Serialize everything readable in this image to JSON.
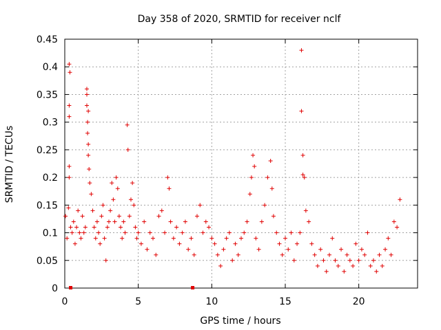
{
  "chart_data": {
    "type": "scatter",
    "title": "Day 358 of 2020, SRMTID for receiver nclf",
    "xlabel": "GPS time / hours",
    "ylabel": "SRMTID / TECUs",
    "xlim": [
      0,
      24
    ],
    "ylim": [
      0,
      0.45
    ],
    "x_ticks": [
      "0",
      "5",
      "10",
      "15",
      "20"
    ],
    "y_ticks": [
      "0",
      "0.05",
      "0.1",
      "0.15",
      "0.2",
      "0.25",
      "0.3",
      "0.35",
      "0.4",
      "0.45"
    ],
    "grid": true,
    "marker": "plus",
    "color": "#e00000",
    "marker_bottom": [
      0.4,
      8.7
    ],
    "series": [
      {
        "values": [
          [
            0.05,
            0.13
          ],
          [
            0.15,
            0.09
          ],
          [
            0.25,
            0.145
          ],
          [
            0.3,
            0.2
          ],
          [
            0.3,
            0.22
          ],
          [
            0.3,
            0.31
          ],
          [
            0.3,
            0.33
          ],
          [
            0.3,
            0.405
          ],
          [
            0.35,
            0.39
          ],
          [
            0.4,
            0.11
          ],
          [
            0.5,
            0.1
          ],
          [
            0.6,
            0.12
          ],
          [
            0.7,
            0.08
          ],
          [
            0.8,
            0.11
          ],
          [
            0.9,
            0.14
          ],
          [
            1.0,
            0.1
          ],
          [
            1.1,
            0.09
          ],
          [
            1.2,
            0.13
          ],
          [
            1.3,
            0.1
          ],
          [
            1.4,
            0.11
          ],
          [
            1.5,
            0.36
          ],
          [
            1.5,
            0.35
          ],
          [
            1.5,
            0.33
          ],
          [
            1.6,
            0.32
          ],
          [
            1.55,
            0.3
          ],
          [
            1.55,
            0.28
          ],
          [
            1.6,
            0.26
          ],
          [
            1.6,
            0.24
          ],
          [
            1.65,
            0.215
          ],
          [
            1.7,
            0.19
          ],
          [
            1.8,
            0.17
          ],
          [
            1.9,
            0.14
          ],
          [
            2.0,
            0.11
          ],
          [
            2.1,
            0.09
          ],
          [
            2.2,
            0.12
          ],
          [
            2.3,
            0.1
          ],
          [
            2.4,
            0.08
          ],
          [
            2.5,
            0.13
          ],
          [
            2.6,
            0.15
          ],
          [
            2.7,
            0.09
          ],
          [
            2.8,
            0.05
          ],
          [
            2.9,
            0.11
          ],
          [
            3.0,
            0.12
          ],
          [
            3.1,
            0.14
          ],
          [
            3.2,
            0.19
          ],
          [
            3.3,
            0.16
          ],
          [
            3.4,
            0.12
          ],
          [
            3.5,
            0.2
          ],
          [
            3.6,
            0.18
          ],
          [
            3.7,
            0.13
          ],
          [
            3.8,
            0.11
          ],
          [
            3.9,
            0.09
          ],
          [
            4.0,
            0.12
          ],
          [
            4.1,
            0.1
          ],
          [
            4.25,
            0.295
          ],
          [
            4.3,
            0.25
          ],
          [
            4.4,
            0.13
          ],
          [
            4.5,
            0.16
          ],
          [
            4.6,
            0.19
          ],
          [
            4.7,
            0.15
          ],
          [
            4.8,
            0.11
          ],
          [
            4.9,
            0.09
          ],
          [
            5.0,
            0.1
          ],
          [
            5.2,
            0.08
          ],
          [
            5.4,
            0.12
          ],
          [
            5.6,
            0.07
          ],
          [
            5.8,
            0.1
          ],
          [
            6.0,
            0.09
          ],
          [
            6.2,
            0.06
          ],
          [
            6.4,
            0.13
          ],
          [
            6.6,
            0.14
          ],
          [
            6.8,
            0.1
          ],
          [
            7.0,
            0.2
          ],
          [
            7.1,
            0.18
          ],
          [
            7.2,
            0.12
          ],
          [
            7.4,
            0.09
          ],
          [
            7.6,
            0.11
          ],
          [
            7.8,
            0.08
          ],
          [
            8.0,
            0.1
          ],
          [
            8.2,
            0.12
          ],
          [
            8.4,
            0.07
          ],
          [
            8.6,
            0.09
          ],
          [
            8.8,
            0.06
          ],
          [
            9.0,
            0.13
          ],
          [
            9.2,
            0.15
          ],
          [
            9.4,
            0.1
          ],
          [
            9.6,
            0.12
          ],
          [
            9.8,
            0.11
          ],
          [
            10.0,
            0.09
          ],
          [
            10.2,
            0.08
          ],
          [
            10.4,
            0.06
          ],
          [
            10.6,
            0.04
          ],
          [
            10.8,
            0.07
          ],
          [
            11.0,
            0.09
          ],
          [
            11.2,
            0.1
          ],
          [
            11.4,
            0.05
          ],
          [
            11.6,
            0.08
          ],
          [
            11.8,
            0.06
          ],
          [
            12.0,
            0.09
          ],
          [
            12.2,
            0.1
          ],
          [
            12.4,
            0.12
          ],
          [
            12.6,
            0.17
          ],
          [
            12.7,
            0.2
          ],
          [
            12.8,
            0.24
          ],
          [
            12.9,
            0.22
          ],
          [
            13.0,
            0.09
          ],
          [
            13.2,
            0.07
          ],
          [
            13.4,
            0.12
          ],
          [
            13.6,
            0.15
          ],
          [
            13.8,
            0.2
          ],
          [
            14.0,
            0.23
          ],
          [
            14.1,
            0.18
          ],
          [
            14.2,
            0.13
          ],
          [
            14.4,
            0.1
          ],
          [
            14.6,
            0.08
          ],
          [
            14.8,
            0.06
          ],
          [
            15.0,
            0.09
          ],
          [
            15.2,
            0.07
          ],
          [
            15.4,
            0.1
          ],
          [
            15.6,
            0.05
          ],
          [
            15.8,
            0.08
          ],
          [
            16.0,
            0.1
          ],
          [
            16.1,
            0.43
          ],
          [
            16.1,
            0.32
          ],
          [
            16.2,
            0.24
          ],
          [
            16.2,
            0.205
          ],
          [
            16.3,
            0.2
          ],
          [
            16.4,
            0.14
          ],
          [
            16.6,
            0.12
          ],
          [
            16.8,
            0.08
          ],
          [
            17.0,
            0.06
          ],
          [
            17.2,
            0.04
          ],
          [
            17.4,
            0.07
          ],
          [
            17.6,
            0.05
          ],
          [
            17.8,
            0.03
          ],
          [
            18.0,
            0.06
          ],
          [
            18.2,
            0.09
          ],
          [
            18.4,
            0.05
          ],
          [
            18.6,
            0.04
          ],
          [
            18.8,
            0.07
          ],
          [
            19.0,
            0.03
          ],
          [
            19.2,
            0.06
          ],
          [
            19.4,
            0.05
          ],
          [
            19.6,
            0.04
          ],
          [
            19.8,
            0.08
          ],
          [
            20.0,
            0.05
          ],
          [
            20.2,
            0.07
          ],
          [
            20.4,
            0.06
          ],
          [
            20.6,
            0.1
          ],
          [
            20.8,
            0.04
          ],
          [
            21.0,
            0.05
          ],
          [
            21.2,
            0.03
          ],
          [
            21.4,
            0.06
          ],
          [
            21.6,
            0.04
          ],
          [
            21.8,
            0.07
          ],
          [
            22.0,
            0.09
          ],
          [
            22.2,
            0.06
          ],
          [
            22.4,
            0.12
          ],
          [
            22.6,
            0.11
          ],
          [
            22.8,
            0.16
          ]
        ]
      }
    ]
  }
}
